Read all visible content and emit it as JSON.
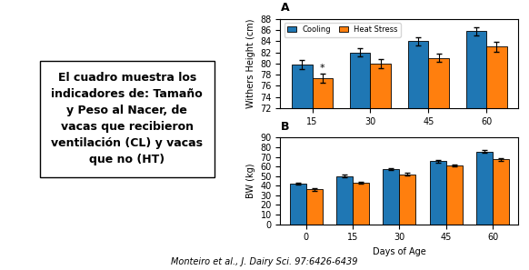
{
  "chart_data": [
    {
      "type": "bar",
      "title": "A",
      "y_label": "Withers Height (cm)",
      "categories": [
        "15",
        "30",
        "45",
        "60"
      ],
      "series": [
        {
          "name": "Cooling",
          "values": [
            79.8,
            82.0,
            84.0,
            85.8
          ],
          "errors": [
            0.8,
            0.7,
            0.7,
            0.7
          ]
        },
        {
          "name": "Heat Stress",
          "values": [
            77.3,
            80.0,
            81.0,
            83.0
          ],
          "errors": [
            0.8,
            0.8,
            0.7,
            0.9
          ]
        }
      ],
      "ylim": [
        72,
        88
      ],
      "yticks": [
        72,
        74,
        76,
        78,
        80,
        82,
        84,
        86,
        88
      ],
      "legend": "upper left",
      "annotations": [
        {
          "text": "*",
          "category": "15",
          "series": "Heat Stress"
        }
      ]
    },
    {
      "type": "bar",
      "title": "B",
      "y_label": "BW (kg)",
      "x_label": "Days of Age",
      "categories": [
        "0",
        "15",
        "30",
        "45",
        "60"
      ],
      "series": [
        {
          "name": "Cooling",
          "values": [
            42.0,
            50.0,
            57.5,
            65.5,
            75.5
          ],
          "errors": [
            1.0,
            1.2,
            1.2,
            1.2,
            1.3
          ]
        },
        {
          "name": "Heat Stress",
          "values": [
            36.0,
            43.0,
            52.0,
            61.0,
            67.5
          ],
          "errors": [
            1.0,
            1.2,
            1.2,
            1.3,
            1.5
          ]
        }
      ],
      "ylim": [
        0,
        90
      ],
      "yticks": [
        0,
        10,
        20,
        30,
        40,
        50,
        60,
        70,
        80,
        90
      ]
    }
  ],
  "annotations": [
    "El cuadro muestra los\nindicadores de: Tamaño\ny Peso al Nacer, de\nvacas que recibieron\nventilación (CL) y vacas\nque no (HT)",
    "Monteiro et al., J. Dairy Sci. 97:6426-6439"
  ]
}
